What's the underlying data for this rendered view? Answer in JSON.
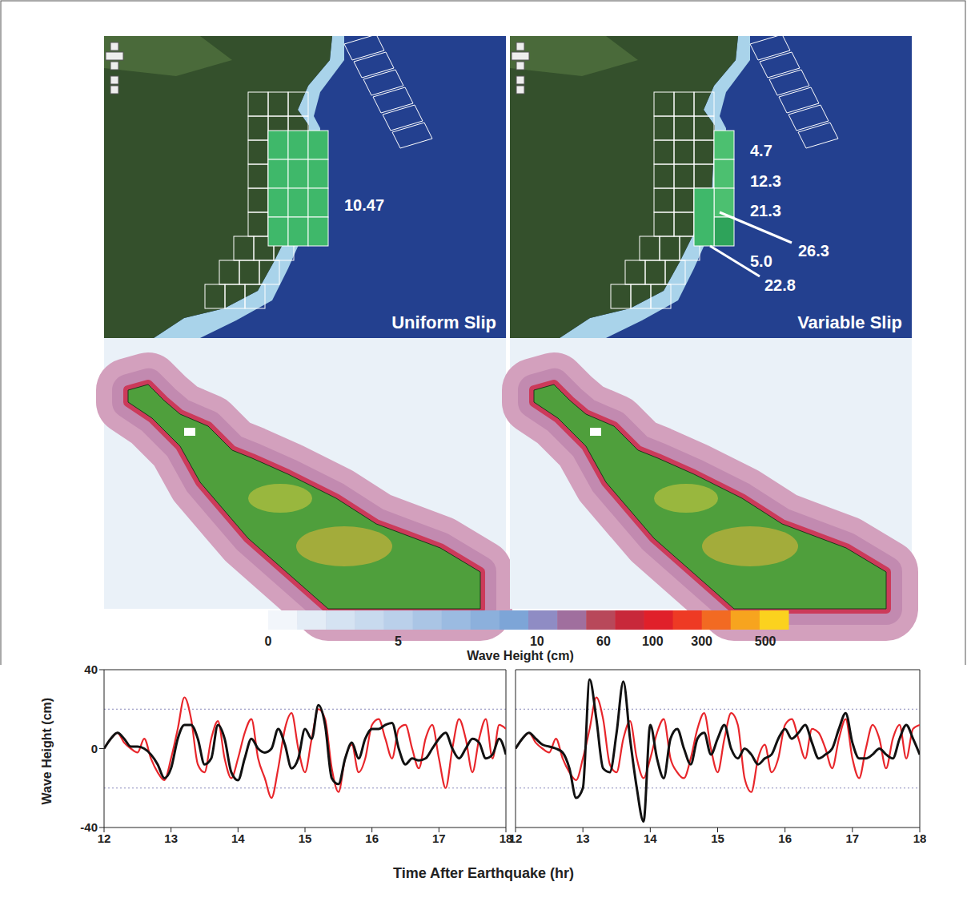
{
  "maps": [
    {
      "label": "Uniform Slip",
      "slip_labels": [
        "10.47"
      ]
    },
    {
      "label": "Variable Slip",
      "slip_labels": [
        "4.7",
        "12.3",
        "21.3",
        "26.3",
        "5.0",
        "22.8"
      ]
    }
  ],
  "colorbar": {
    "title": "Wave Height (cm)",
    "ticks": [
      0,
      5,
      10,
      60,
      100,
      300,
      500
    ],
    "colors": [
      "#f2f6fb",
      "#e3ecf6",
      "#d5e3f2",
      "#c8daee",
      "#bad0ea",
      "#aac5e5",
      "#9bbbe1",
      "#8cb0dc",
      "#7da5d7",
      "#8f8cc4",
      "#a06f9e",
      "#b8485a",
      "#c8283a",
      "#e0202a",
      "#ee3a24",
      "#f26a22",
      "#f7a41e",
      "#fbd21e"
    ]
  },
  "x_axis_title": "Time After Earthquake (hr)",
  "chart_data": [
    {
      "type": "line",
      "ylabel": "Wave Height (cm)",
      "x": [
        12,
        12.1,
        12.2,
        12.3,
        12.4,
        12.5,
        12.6,
        12.7,
        12.8,
        12.9,
        13,
        13.1,
        13.2,
        13.3,
        13.4,
        13.5,
        13.6,
        13.7,
        13.8,
        13.9,
        14,
        14.1,
        14.2,
        14.3,
        14.4,
        14.5,
        14.6,
        14.7,
        14.8,
        14.9,
        15,
        15.1,
        15.2,
        15.3,
        15.4,
        15.5,
        15.6,
        15.7,
        15.8,
        15.9,
        16,
        16.1,
        16.2,
        16.3,
        16.4,
        16.5,
        16.6,
        16.7,
        16.8,
        16.9,
        17,
        17.1,
        17.2,
        17.3,
        17.4,
        17.5,
        17.6,
        17.7,
        17.8,
        17.9,
        18
      ],
      "xlim": [
        12,
        18
      ],
      "xticks": [
        12,
        13,
        14,
        15,
        16,
        17,
        18
      ],
      "ylim": [
        -40,
        40
      ],
      "yticks": [
        -40,
        0,
        40
      ],
      "reference_lines": [
        -20,
        20
      ],
      "series": [
        {
          "color": "#e8262b",
          "values": [
            0,
            5,
            8,
            3,
            0,
            -2,
            5,
            -5,
            -12,
            -16,
            -5,
            10,
            26,
            15,
            -8,
            -12,
            5,
            14,
            -5,
            -15,
            -5,
            8,
            15,
            -5,
            -15,
            -25,
            -10,
            10,
            18,
            0,
            -12,
            5,
            20,
            15,
            -10,
            -22,
            -5,
            2,
            -12,
            -5,
            12,
            15,
            5,
            -5,
            10,
            12,
            0,
            -10,
            5,
            12,
            -5,
            -20,
            0,
            15,
            5,
            -12,
            5,
            15,
            -5,
            12,
            10
          ]
        },
        {
          "color": "#111111",
          "values": [
            0,
            5,
            8,
            5,
            1,
            1,
            0,
            -3,
            -8,
            -15,
            -10,
            5,
            12,
            12,
            5,
            -8,
            -5,
            12,
            5,
            -12,
            -16,
            -5,
            5,
            0,
            -2,
            0,
            10,
            2,
            -10,
            -5,
            10,
            5,
            22,
            12,
            -15,
            -18,
            -5,
            3,
            -5,
            5,
            10,
            10,
            12,
            13,
            0,
            -8,
            -5,
            -6,
            -5,
            0,
            5,
            8,
            0,
            -5,
            0,
            5,
            3,
            -5,
            -3,
            5,
            -3
          ]
        }
      ]
    },
    {
      "type": "line",
      "tick_labels": "x",
      "x": [
        12,
        12.1,
        12.2,
        12.3,
        12.4,
        12.5,
        12.6,
        12.7,
        12.8,
        12.9,
        13,
        13.1,
        13.2,
        13.3,
        13.4,
        13.5,
        13.6,
        13.7,
        13.8,
        13.9,
        14,
        14.1,
        14.2,
        14.3,
        14.4,
        14.5,
        14.6,
        14.7,
        14.8,
        14.9,
        15,
        15.1,
        15.2,
        15.3,
        15.4,
        15.5,
        15.6,
        15.7,
        15.8,
        15.9,
        16,
        16.1,
        16.2,
        16.3,
        16.4,
        16.5,
        16.6,
        16.7,
        16.8,
        16.9,
        17,
        17.1,
        17.2,
        17.3,
        17.4,
        17.5,
        17.6,
        17.7,
        17.8,
        17.9,
        18
      ],
      "xlim": [
        12,
        18
      ],
      "xticks": [
        12,
        13,
        14,
        15,
        16,
        17,
        18
      ],
      "ylim": [
        -40,
        40
      ],
      "yticks": [
        -40,
        0,
        40
      ],
      "reference_lines": [
        -20,
        20
      ],
      "series": [
        {
          "color": "#e8262b",
          "values": [
            0,
            5,
            8,
            3,
            0,
            -2,
            5,
            -5,
            -12,
            -16,
            -5,
            10,
            26,
            15,
            -8,
            -12,
            5,
            14,
            -5,
            -15,
            -5,
            8,
            15,
            -5,
            -12,
            -15,
            -5,
            10,
            18,
            0,
            -12,
            5,
            18,
            12,
            -15,
            -22,
            -5,
            2,
            -12,
            -5,
            12,
            15,
            5,
            -5,
            10,
            8,
            0,
            -10,
            5,
            15,
            -5,
            -15,
            0,
            12,
            5,
            -10,
            5,
            12,
            -5,
            10,
            12
          ]
        },
        {
          "color": "#111111",
          "values": [
            0,
            5,
            8,
            5,
            2,
            1,
            0,
            -2,
            -10,
            -25,
            -20,
            35,
            15,
            -10,
            -12,
            8,
            34,
            5,
            -20,
            -37,
            12,
            -5,
            -15,
            5,
            10,
            0,
            -8,
            5,
            8,
            -3,
            5,
            12,
            0,
            -5,
            0,
            -3,
            -8,
            -5,
            -3,
            5,
            10,
            5,
            8,
            12,
            3,
            -5,
            -3,
            0,
            10,
            18,
            3,
            -5,
            -5,
            -3,
            0,
            -3,
            -5,
            5,
            12,
            5,
            -3
          ]
        }
      ]
    }
  ]
}
